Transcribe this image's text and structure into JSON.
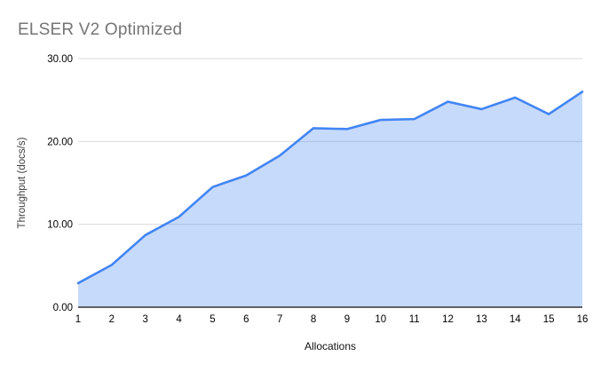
{
  "chart_data": {
    "type": "area",
    "title": "ELSER V2 Optimized",
    "xlabel": "Allocations",
    "ylabel": "Throughput (docs/s)",
    "categories": [
      "1",
      "2",
      "3",
      "4",
      "5",
      "6",
      "7",
      "8",
      "9",
      "10",
      "11",
      "12",
      "13",
      "14",
      "15",
      "16"
    ],
    "values": [
      2.9,
      5.1,
      8.7,
      10.9,
      14.5,
      15.9,
      18.3,
      21.6,
      21.5,
      22.6,
      22.7,
      24.8,
      23.9,
      25.3,
      23.3,
      26.0
    ],
    "ylim": [
      0,
      30
    ],
    "y_ticks": [
      {
        "value": 0,
        "label": "0.00"
      },
      {
        "value": 10,
        "label": "10.00"
      },
      {
        "value": 20,
        "label": "20.00"
      },
      {
        "value": 30,
        "label": "30.00"
      }
    ],
    "grid": true,
    "legend_position": "none",
    "colors": {
      "line": "#4285f4",
      "area_fill": "rgba(66,133,244,0.3)",
      "gridline": "#dadada",
      "axis_line": "#333333",
      "tick_text": "#000000",
      "title_text": "#757575",
      "axis_title_text": "#3c3c3c",
      "background": "#ffffff"
    }
  }
}
